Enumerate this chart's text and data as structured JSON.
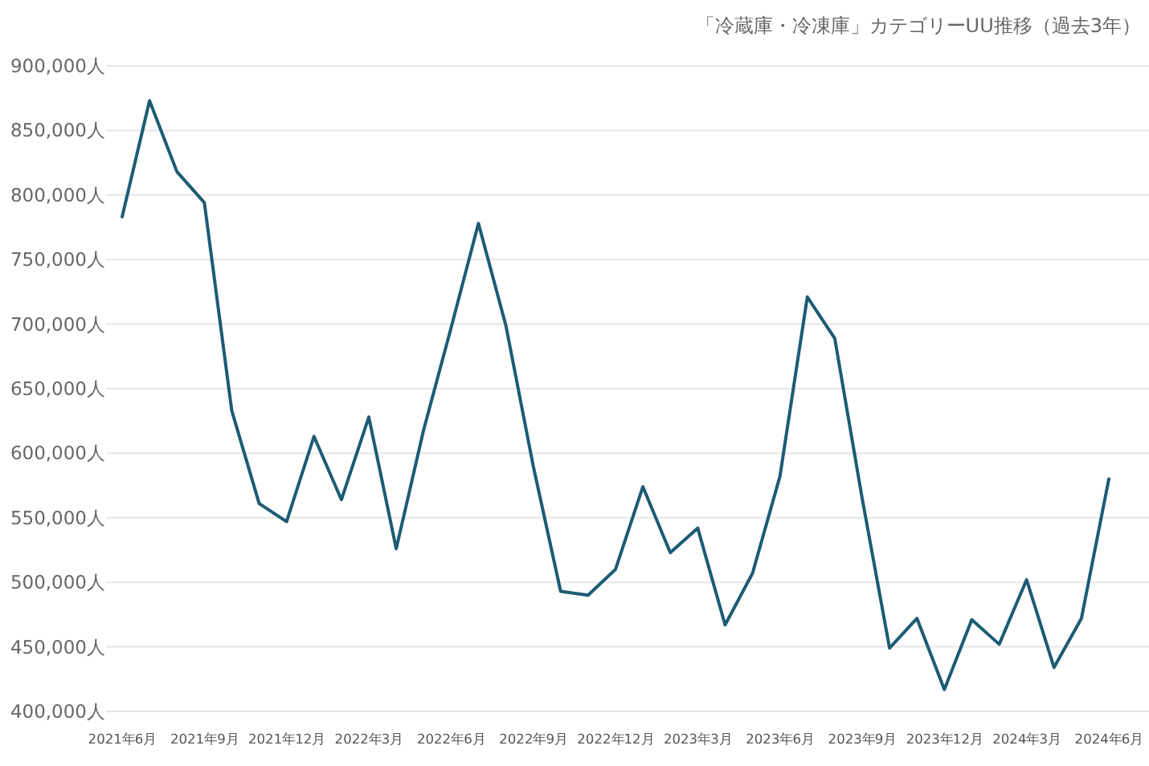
{
  "chart_data": {
    "type": "line",
    "title": "「冷蔵庫・冷凍庫」カテゴリーUU推移（過去3年）",
    "categories": [
      "2021年6月",
      null,
      null,
      "2021年9月",
      null,
      null,
      "2021年12月",
      null,
      null,
      "2022年3月",
      null,
      null,
      "2022年6月",
      null,
      null,
      "2022年9月",
      null,
      null,
      "2022年12月",
      null,
      null,
      "2023年3月",
      null,
      null,
      "2023年6月",
      null,
      null,
      "2023年9月",
      null,
      null,
      "2023年12月",
      null,
      null,
      "2024年3月",
      null,
      null,
      "2024年6月"
    ],
    "series": [
      {
        "color": "#1d5b73",
        "values": [
          783000,
          873000,
          818000,
          794000,
          633000,
          561000,
          547000,
          613000,
          564000,
          628000,
          526000,
          618000,
          697000,
          778000,
          699000,
          590000,
          493000,
          490000,
          510000,
          574000,
          523000,
          542000,
          467000,
          507000,
          582000,
          721000,
          689000,
          565000,
          449000,
          472000,
          417000,
          471000,
          452000,
          502000,
          434000,
          472000,
          580000
        ]
      }
    ],
    "ylim": [
      400000,
      900000
    ],
    "yticks": [
      {
        "value": 400000,
        "label": "400,000人"
      },
      {
        "value": 450000,
        "label": "450,000人"
      },
      {
        "value": 500000,
        "label": "500,000人"
      },
      {
        "value": 550000,
        "label": "550,000人"
      },
      {
        "value": 600000,
        "label": "600,000人"
      },
      {
        "value": 650000,
        "label": "650,000人"
      },
      {
        "value": 700000,
        "label": "700,000人"
      },
      {
        "value": 750000,
        "label": "750,000人"
      },
      {
        "value": 800000,
        "label": "800,000人"
      },
      {
        "value": 850000,
        "label": "850,000人"
      },
      {
        "value": 900000,
        "label": "900,000人"
      }
    ],
    "grid": "y",
    "marker": "none",
    "line_style": "solid"
  }
}
